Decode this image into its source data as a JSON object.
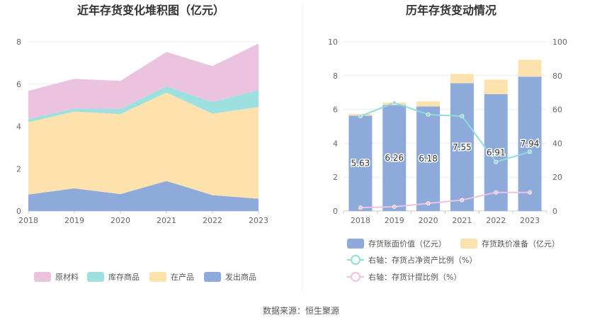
{
  "source": "数据来源：恒生聚源",
  "chart_data": [
    {
      "type": "area",
      "stacked": true,
      "title": "近年存货变化堆积图（亿元）",
      "categories": [
        "2018",
        "2019",
        "2020",
        "2021",
        "2022",
        "2023"
      ],
      "ylim": [
        0,
        8
      ],
      "yticks": [
        "0",
        "2",
        "4",
        "6",
        "8"
      ],
      "legend_position": "bottom",
      "series": [
        {
          "name": "发出商品",
          "color": "#8eaadb",
          "values": [
            0.78,
            1.07,
            0.8,
            1.42,
            0.75,
            0.58
          ]
        },
        {
          "name": "在产品",
          "color": "#fde2ad",
          "values": [
            3.42,
            3.63,
            3.78,
            4.18,
            3.85,
            4.34
          ]
        },
        {
          "name": "库存商品",
          "color": "#9ee0e0",
          "values": [
            0.15,
            0.15,
            0.25,
            0.3,
            0.55,
            0.8
          ]
        },
        {
          "name": "原材料",
          "color": "#ebc3df",
          "values": [
            1.33,
            1.4,
            1.32,
            1.62,
            1.7,
            2.2
          ]
        }
      ],
      "legend_order": [
        "原材料",
        "库存商品",
        "在产品",
        "发出商品"
      ]
    },
    {
      "type": "bar",
      "title": "历年存货变动情况",
      "categories": [
        "2018",
        "2019",
        "2020",
        "2021",
        "2022",
        "2023"
      ],
      "ylim_left": [
        0,
        10
      ],
      "yticks_left": [
        "0",
        "2",
        "4",
        "6",
        "8",
        "10"
      ],
      "ylim_right": [
        0,
        100
      ],
      "yticks_right": [
        "0",
        "20",
        "40",
        "60",
        "80",
        "100"
      ],
      "legend_position": "bottom",
      "bars": [
        {
          "name": "存货账面价值（亿元）",
          "color": "#8eaadb",
          "values": [
            5.63,
            6.26,
            6.18,
            7.55,
            6.91,
            7.94
          ],
          "labels": [
            "5.63",
            "6.26",
            "6.18",
            "7.55",
            "6.91",
            "7.94"
          ]
        },
        {
          "name": "存货跌价准备（亿元）",
          "color": "#fde2ad",
          "values": [
            0.1,
            0.15,
            0.3,
            0.55,
            0.85,
            1.0
          ]
        }
      ],
      "lines": [
        {
          "name": "右轴：存货占净资产比例（%）",
          "color": "#8fdcdc",
          "values": [
            56,
            64,
            57,
            56,
            29,
            35
          ]
        },
        {
          "name": "右轴：存货计提比例（%）",
          "color": "#ebc3df",
          "values": [
            2,
            2.5,
            4.5,
            6.5,
            11,
            11
          ]
        }
      ]
    }
  ]
}
